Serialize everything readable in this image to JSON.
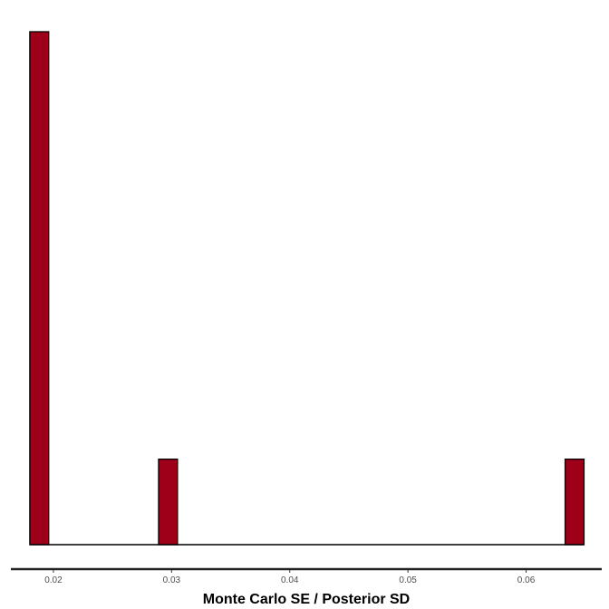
{
  "chart_data": {
    "type": "bar",
    "xlabel": "Monte Carlo SE / Posterior SD",
    "ylabel": "",
    "title": "",
    "xlim": [
      0.0164,
      0.0664
    ],
    "x_ticks": [
      0.02,
      0.03,
      0.04,
      0.05,
      0.06
    ],
    "x_tick_labels": [
      "0.02",
      "0.03",
      "0.04",
      "0.05",
      "0.06"
    ],
    "bin_width": 0.0016,
    "bins": [
      {
        "x": 0.0188,
        "count": 6
      },
      {
        "x": 0.0297,
        "count": 1
      },
      {
        "x": 0.0641,
        "count": 1
      }
    ],
    "y_axis_visible": false,
    "grid": false,
    "fill_color": "#9e0019",
    "border_color": "#000000"
  }
}
